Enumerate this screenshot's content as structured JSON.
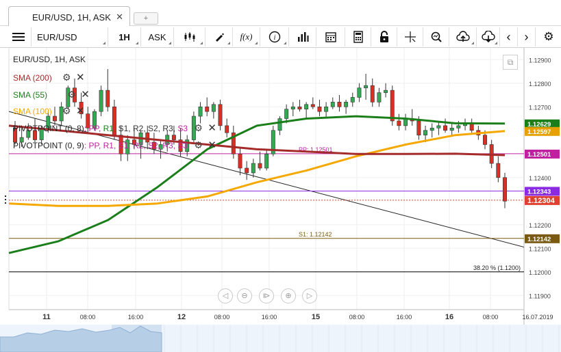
{
  "tab": {
    "title": "EUR/USD, 1H, ASK",
    "close": "✕",
    "new_tab": "+"
  },
  "toolbar": {
    "symbol": "EUR/USD",
    "timeframe": "1H",
    "side": "ASK",
    "icons": [
      "menu-icon",
      "candlestick-icon",
      "draw-icon",
      "fx-icon",
      "info-icon",
      "volume-icon",
      "calendar-icon",
      "calculator-icon",
      "lock-icon",
      "crosshair-icon",
      "zoom-icon",
      "upload-icon",
      "download-icon",
      "chevron-left-icon",
      "chevron-right-icon",
      "settings-icon"
    ]
  },
  "legend": {
    "title": "EUR/USD, 1H, ASK",
    "sma200": {
      "label": "SMA (200)",
      "color": "#a52a2a"
    },
    "sma55": {
      "label": "SMA (55)",
      "color": "#1a7f1a"
    },
    "sma100": {
      "label": "SMA (100)",
      "color": "#f5a800"
    },
    "pivot1": {
      "label": "PIVOTPOINT (0, 8)",
      "parts": [
        {
          "t": ": PP,",
          "c": "#c020a0"
        },
        {
          "t": " R1,",
          "c": "#1a7f1a"
        },
        {
          "t": " S1,",
          "c": "#333"
        },
        {
          "t": " R2,",
          "c": "#333"
        },
        {
          "t": " S2,",
          "c": "#333"
        },
        {
          "t": " R3,",
          "c": "#333"
        },
        {
          "t": " S3",
          "c": "#c020a0"
        }
      ]
    },
    "pivot2": {
      "label": "PIVOTPOINT (0, 9)",
      "parts": [
        {
          "t": ": PP,",
          "c": "#c020a0"
        },
        {
          "t": " R1,",
          "c": "#c020a0"
        },
        {
          "t": " S1,",
          "c": "#c020a0"
        },
        {
          "t": " R2,",
          "c": "#c020a0"
        },
        {
          "t": " S2,",
          "c": "#c020a0"
        },
        {
          "t": " R3,",
          "c": "#c020a0"
        },
        {
          "t": " S3",
          "c": "#c020a0"
        }
      ]
    }
  },
  "chart_data": {
    "type": "candlestick",
    "symbol": "EUR/USD",
    "timeframe": "1H",
    "price_range": [
      1.1184,
      1.1295
    ],
    "y_ticks": [
      1.129,
      1.128,
      1.127,
      1.124,
      1.122,
      1.121,
      1.12,
      1.119
    ],
    "x_ticks": [
      {
        "label": "11",
        "major": true
      },
      {
        "label": "08:00"
      },
      {
        "label": "16:00"
      },
      {
        "label": "12",
        "major": true
      },
      {
        "label": "08:00"
      },
      {
        "label": "16:00"
      },
      {
        "label": "15",
        "major": true
      },
      {
        "label": "08:00"
      },
      {
        "label": "16:00"
      },
      {
        "label": "16",
        "major": true
      },
      {
        "label": "08:00"
      },
      {
        "label": "16.07.2019"
      }
    ],
    "candles": [
      [
        1.1261,
        1.1264,
        1.1254,
        1.1255
      ],
      [
        1.1255,
        1.1261,
        1.1253,
        1.1257
      ],
      [
        1.1257,
        1.1263,
        1.1256,
        1.126
      ],
      [
        1.126,
        1.1265,
        1.1255,
        1.1256
      ],
      [
        1.1256,
        1.1262,
        1.1254,
        1.1261
      ],
      [
        1.1261,
        1.1268,
        1.1259,
        1.1266
      ],
      [
        1.1266,
        1.127,
        1.1262,
        1.1264
      ],
      [
        1.1264,
        1.1272,
        1.1262,
        1.127
      ],
      [
        1.127,
        1.1279,
        1.1269,
        1.1278
      ],
      [
        1.1278,
        1.1282,
        1.127,
        1.1272
      ],
      [
        1.1272,
        1.1276,
        1.1265,
        1.1267
      ],
      [
        1.1267,
        1.127,
        1.1259,
        1.1261
      ],
      [
        1.1261,
        1.1269,
        1.126,
        1.1268
      ],
      [
        1.1268,
        1.1279,
        1.1266,
        1.1277
      ],
      [
        1.1277,
        1.1286,
        1.1268,
        1.127
      ],
      [
        1.127,
        1.1273,
        1.1256,
        1.1258
      ],
      [
        1.1258,
        1.1262,
        1.1247,
        1.125
      ],
      [
        1.125,
        1.1258,
        1.1247,
        1.1256
      ],
      [
        1.1256,
        1.1261,
        1.1252,
        1.1254
      ],
      [
        1.1254,
        1.126,
        1.1248,
        1.1259
      ],
      [
        1.1259,
        1.1262,
        1.1252,
        1.1255
      ],
      [
        1.1255,
        1.1259,
        1.125,
        1.1252
      ],
      [
        1.1252,
        1.1256,
        1.1248,
        1.1254
      ],
      [
        1.1254,
        1.126,
        1.1251,
        1.1258
      ],
      [
        1.1258,
        1.1262,
        1.1254,
        1.1256
      ],
      [
        1.1256,
        1.1261,
        1.1249,
        1.1251
      ],
      [
        1.1251,
        1.1258,
        1.1249,
        1.1256
      ],
      [
        1.1256,
        1.1268,
        1.1255,
        1.1266
      ],
      [
        1.1266,
        1.1272,
        1.1263,
        1.127
      ],
      [
        1.127,
        1.1274,
        1.1266,
        1.1268
      ],
      [
        1.1268,
        1.1272,
        1.1265,
        1.1271
      ],
      [
        1.1271,
        1.1273,
        1.126,
        1.1262
      ],
      [
        1.1262,
        1.1265,
        1.1257,
        1.1259
      ],
      [
        1.1259,
        1.1262,
        1.1248,
        1.125
      ],
      [
        1.125,
        1.1253,
        1.1241,
        1.1244
      ],
      [
        1.1244,
        1.1247,
        1.1239,
        1.1242
      ],
      [
        1.1242,
        1.1248,
        1.124,
        1.1246
      ],
      [
        1.1246,
        1.1251,
        1.1243,
        1.1244
      ],
      [
        1.1244,
        1.1252,
        1.1243,
        1.125
      ],
      [
        1.125,
        1.1262,
        1.1249,
        1.126
      ],
      [
        1.126,
        1.1266,
        1.1258,
        1.1265
      ],
      [
        1.1265,
        1.1271,
        1.1263,
        1.1269
      ],
      [
        1.1269,
        1.1272,
        1.1266,
        1.127
      ],
      [
        1.127,
        1.1273,
        1.1268,
        1.1269
      ],
      [
        1.1269,
        1.1272,
        1.1265,
        1.1271
      ],
      [
        1.1271,
        1.1274,
        1.1269,
        1.127
      ],
      [
        1.127,
        1.1273,
        1.1266,
        1.1268
      ],
      [
        1.1268,
        1.1272,
        1.1265,
        1.127
      ],
      [
        1.127,
        1.1274,
        1.1269,
        1.1272
      ],
      [
        1.1272,
        1.1275,
        1.1268,
        1.127
      ],
      [
        1.127,
        1.1273,
        1.1267,
        1.1272
      ],
      [
        1.1272,
        1.1276,
        1.127,
        1.1274
      ],
      [
        1.1274,
        1.128,
        1.1272,
        1.1278
      ],
      [
        1.1278,
        1.1284,
        1.1273,
        1.1279
      ],
      [
        1.1279,
        1.1282,
        1.127,
        1.1272
      ],
      [
        1.1272,
        1.1278,
        1.127,
        1.1276
      ],
      [
        1.1276,
        1.128,
        1.1274,
        1.1277
      ],
      [
        1.1277,
        1.1279,
        1.1262,
        1.1264
      ],
      [
        1.1264,
        1.1267,
        1.126,
        1.1262
      ],
      [
        1.1262,
        1.1267,
        1.126,
        1.1265
      ],
      [
        1.1265,
        1.1269,
        1.1262,
        1.1264
      ],
      [
        1.1264,
        1.1266,
        1.1256,
        1.1258
      ],
      [
        1.1258,
        1.1262,
        1.1255,
        1.126
      ],
      [
        1.126,
        1.1263,
        1.1257,
        1.1261
      ],
      [
        1.1261,
        1.1264,
        1.1258,
        1.1262
      ],
      [
        1.1262,
        1.1265,
        1.1259,
        1.126
      ],
      [
        1.126,
        1.1263,
        1.1258,
        1.1261
      ],
      [
        1.1261,
        1.1264,
        1.1259,
        1.1262
      ],
      [
        1.1262,
        1.1265,
        1.126,
        1.1263
      ],
      [
        1.1263,
        1.1265,
        1.1259,
        1.126
      ],
      [
        1.126,
        1.1262,
        1.1256,
        1.1258
      ],
      [
        1.1258,
        1.126,
        1.1252,
        1.1254
      ],
      [
        1.1254,
        1.1256,
        1.1244,
        1.1246
      ],
      [
        1.1246,
        1.1249,
        1.1238,
        1.124
      ],
      [
        1.124,
        1.1242,
        1.1227,
        1.123
      ]
    ],
    "sma": [
      {
        "name": "SMA (55)",
        "color": "#1a7f1a",
        "values": [
          1.1208,
          1.1213,
          1.1222,
          1.1236,
          1.1252,
          1.1262,
          1.1265,
          1.1266,
          1.1265,
          1.1263,
          1.12629
        ]
      },
      {
        "name": "SMA (100)",
        "color": "#f5a800",
        "values": [
          1.1229,
          1.1228,
          1.1228,
          1.1229,
          1.1232,
          1.1238,
          1.1243,
          1.1249,
          1.1254,
          1.1258,
          1.12597
        ]
      },
      {
        "name": "SMA (200)",
        "color": "#a52a2a",
        "values": [
          1.1262,
          1.126,
          1.1258,
          1.1256,
          1.1254,
          1.1252,
          1.1251,
          1.125,
          1.125,
          1.12501,
          1.12495
        ]
      }
    ],
    "levels": [
      {
        "label": "PP: 1.12501",
        "price": 1.12501,
        "color": "#c020a0",
        "badge": "1.12501"
      },
      {
        "label": "S1: 1.12142",
        "price": 1.12142,
        "color": "#7a5a10",
        "badge": "1.12142"
      },
      {
        "label": "",
        "price": 1.12343,
        "color": "#8a2be2",
        "badge": "1.12343"
      },
      {
        "label": "38.20 % (1.1200)",
        "price": 1.12,
        "color": "#000000",
        "badge": ""
      }
    ],
    "badges": [
      {
        "text": "1.12629",
        "price": 1.12629,
        "color": "#1a7f1a"
      },
      {
        "text": "1.12597",
        "price": 1.12597,
        "color": "#e6a000"
      },
      {
        "text": "1.12304",
        "price": 1.12304,
        "color": "#e04030"
      }
    ],
    "current_price": 1.12304
  }
}
